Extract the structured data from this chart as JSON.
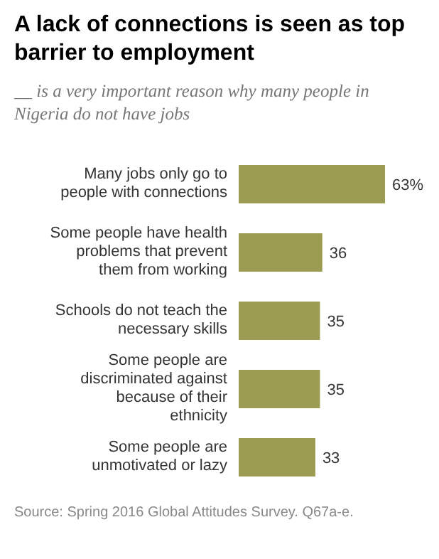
{
  "chart_data": {
    "type": "bar",
    "orientation": "horizontal",
    "title": "A lack of connections is seen as top barrier to employment",
    "subtitle": "__ is a very important reason why many people in Nigeria do not have jobs",
    "categories": [
      "Many jobs only go to people with connections",
      "Some people have health problems that prevent them from working",
      "Schools do not teach the necessary skills",
      "Some people are discriminated against because of their ethnicity",
      "Some people are unmotivated or lazy"
    ],
    "values": [
      63,
      36,
      35,
      35,
      33
    ],
    "value_labels": [
      "63%",
      "36",
      "35",
      "35",
      "33"
    ],
    "color": "#9c9b52",
    "annotations": [
      "Source: Spring 2016 Global Attitudes Survey. Q67a-e."
    ]
  }
}
